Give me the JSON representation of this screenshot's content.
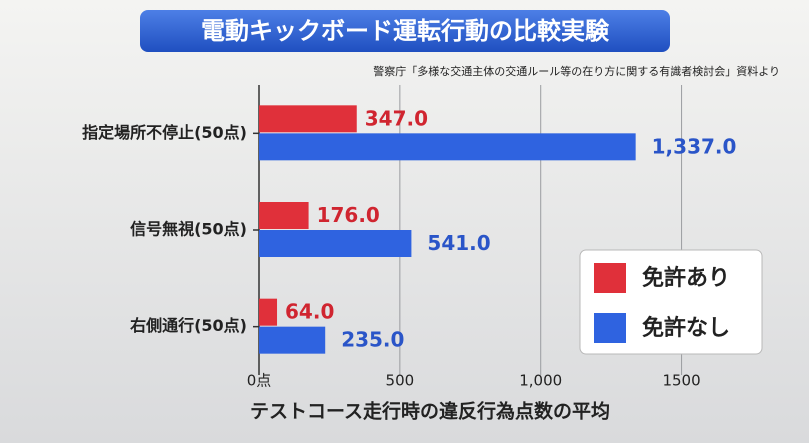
{
  "chart_data": {
    "type": "barh",
    "title": "電動キックボード運転行動の比較実験",
    "subtitle": "警察庁「多様な交通主体の交通ルール等の在り方に関する有識者検討会」資料より",
    "x_label": "テストコース走行時の違反行為点数の平均",
    "categories": [
      "指定場所不停止(50点)",
      "信号無視(50点)",
      "右側通行(50点)"
    ],
    "series": [
      {
        "name": "免許あり",
        "color": "#e0303a",
        "values": [
          347.0,
          176.0,
          64.0
        ],
        "value_labels": [
          "347.0",
          "176.0",
          "64.0"
        ]
      },
      {
        "name": "免許なし",
        "color": "#2f63e0",
        "values": [
          1337.0,
          541.0,
          235.0
        ],
        "value_labels": [
          "1,337.0",
          "541.0",
          "235.0"
        ]
      }
    ],
    "xlim": [
      0,
      1750
    ],
    "xticks": [
      {
        "value": 0,
        "label": "0点"
      },
      500,
      {
        "value": 1000,
        "label": "1,000"
      },
      1500
    ],
    "grid": true,
    "legend": "lower right"
  }
}
